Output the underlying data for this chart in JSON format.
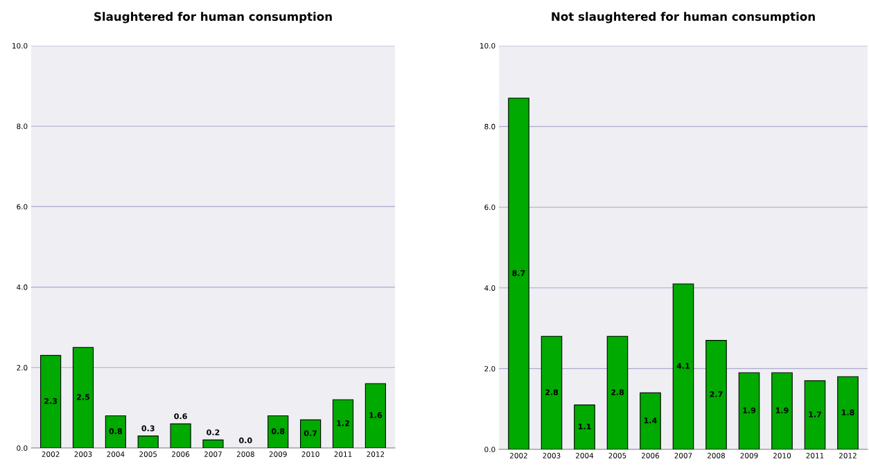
{
  "chart_data": [
    {
      "type": "bar",
      "title": "Slaughtered for human consumption",
      "categories": [
        "2002",
        "2003",
        "2004",
        "2005",
        "2006",
        "2007",
        "2008",
        "2009",
        "2010",
        "2011",
        "2012"
      ],
      "values": [
        2.3,
        2.5,
        0.8,
        0.3,
        0.6,
        0.2,
        0.0,
        0.8,
        0.7,
        1.2,
        1.6
      ],
      "color": "#00aa00",
      "value_labels": [
        "2.3",
        "2.5",
        "0.8",
        "0.3",
        "0.6",
        "0.2",
        "0.0",
        "0.8",
        "0.7",
        "1.2",
        "1.6"
      ],
      "ylim": [
        0,
        10
      ],
      "yticks": [
        {
          "value": 0,
          "label": "0.0"
        },
        {
          "value": 2,
          "label": "2.0"
        },
        {
          "value": 4,
          "label": "4.0"
        },
        {
          "value": 6,
          "label": "6.0"
        },
        {
          "value": 8,
          "label": "8.0"
        },
        {
          "value": 10,
          "label": "10.0"
        }
      ],
      "grid": "y"
    },
    {
      "type": "bar",
      "title": "Not slaughtered for human consumption",
      "categories": [
        "2002",
        "2003",
        "2004",
        "2005",
        "2006",
        "2007",
        "2008",
        "2009",
        "2010",
        "2011",
        "2012"
      ],
      "values": [
        8.7,
        2.8,
        1.1,
        2.8,
        1.4,
        4.1,
        2.7,
        1.9,
        1.9,
        1.7,
        1.8
      ],
      "color": "#00aa00",
      "value_labels": [
        "8.7",
        "2.8",
        "1.1",
        "2.8",
        "1.4",
        "4.1",
        "2.7",
        "1.9",
        "1.9",
        "1.7",
        "1.8"
      ],
      "ylim": [
        0,
        10
      ],
      "yticks": [
        {
          "value": 0,
          "label": "0.0"
        },
        {
          "value": 2,
          "label": "2.0"
        },
        {
          "value": 4,
          "label": "4.0"
        },
        {
          "value": 6,
          "label": "6.0"
        },
        {
          "value": 8,
          "label": "8.0"
        },
        {
          "value": 10,
          "label": "10.0"
        }
      ],
      "grid": "y"
    }
  ]
}
